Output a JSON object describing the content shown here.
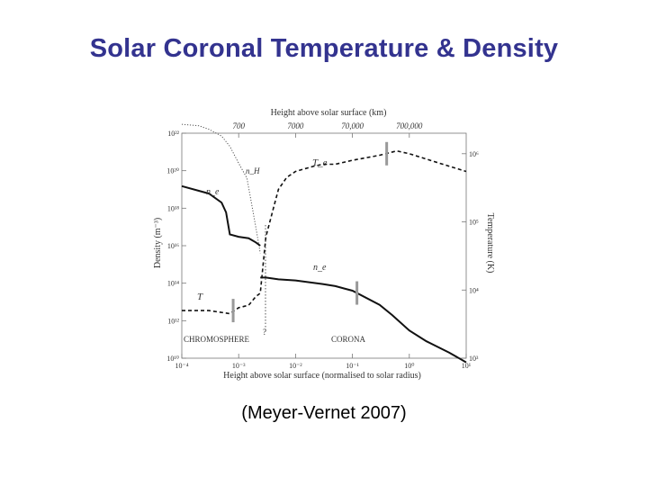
{
  "slide": {
    "title": "Solar Coronal Temperature & Density",
    "caption": "(Meyer-Vernet 2007)"
  },
  "chart_data": {
    "type": "line",
    "top_axis": {
      "label": "Height above solar surface (km)",
      "ticks": [
        "700",
        "7000",
        "70,000",
        "700,000"
      ],
      "tick_values": [
        0.001,
        0.01,
        0.1,
        1
      ]
    },
    "x_axis": {
      "label": "Height above solar surface (normalised to solar radius)",
      "scale": "log",
      "ticks": [
        "10⁻⁴",
        "10⁻³",
        "10⁻²",
        "10⁻¹",
        "10⁰",
        "10¹"
      ],
      "tick_values": [
        0.0001,
        0.001,
        0.01,
        0.1,
        1,
        10
      ],
      "range": [
        0.0001,
        10
      ]
    },
    "y_left": {
      "label": "Density (m⁻³)",
      "scale": "log",
      "ticks": [
        "10²²",
        "10²⁰",
        "10¹⁸",
        "10¹⁶",
        "10¹⁴",
        "10¹²",
        "10¹⁰"
      ],
      "tick_values": [
        1e+22,
        1e+20,
        1e+18,
        1e+16,
        100000000000000.0,
        1000000000000.0,
        10000000000.0
      ],
      "range": [
        10000000000.0,
        1e+22
      ]
    },
    "y_right": {
      "label": "Temperature (K)",
      "scale": "log",
      "ticks": [
        "10⁶",
        "10⁵",
        "10⁴",
        "10³"
      ],
      "tick_values": [
        1000000,
        100000,
        10000,
        1000
      ],
      "range": [
        1000,
        2000000
      ]
    },
    "regions": {
      "chromosphere": "CHROMOSPHERE",
      "corona": "CORONA",
      "unknown_mark": "?"
    },
    "series": [
      {
        "name": "n_H",
        "axis": "left",
        "style": "dotted",
        "x": [
          0.0001,
          0.0002,
          0.0003,
          0.0005,
          0.0007,
          0.001,
          0.0014,
          0.002,
          0.0024
        ],
        "y": [
          3e+22,
          2.5e+22,
          1.6e+22,
          7e+21,
          2e+21,
          2.5e+20,
          4e+19,
          1e+17,
          4000000000000000.0
        ]
      },
      {
        "name": "n_e",
        "axis": "left",
        "style": "solid",
        "x": [
          0.0001,
          0.0003,
          0.0005,
          0.0006,
          0.0007,
          0.001,
          0.0015,
          0.002,
          0.0024
        ],
        "y": [
          1.5e+19,
          6e+18,
          2e+18,
          6e+17,
          4e+16,
          3e+16,
          2.5e+16,
          1.5e+16,
          1e+16
        ]
      },
      {
        "name": "n_e",
        "axis": "left",
        "style": "solid",
        "x": [
          0.0024,
          0.003,
          0.005,
          0.01,
          0.03,
          0.05,
          0.1,
          0.3,
          0.5,
          1,
          2,
          5,
          10
        ],
        "y": [
          200000000000000.0,
          200000000000000.0,
          160000000000000.0,
          140000000000000.0,
          90000000000000.0,
          70000000000000.0,
          40000000000000.0,
          7000000000000.0,
          2000000000000.0,
          300000000000.0,
          80000000000.0,
          20000000000.0,
          6000000000.0
        ]
      },
      {
        "name": "T",
        "axis": "right",
        "style": "dashed",
        "x": [
          0.0001,
          0.0003,
          0.0007,
          0.001,
          0.0015,
          0.002,
          0.0024,
          0.003,
          0.004,
          0.005,
          0.007,
          0.01,
          0.02,
          0.03,
          0.05,
          0.1,
          0.3,
          0.6,
          1,
          3,
          10
        ],
        "y": [
          5000,
          5000,
          4500,
          5500,
          6000,
          8000,
          9000,
          60000,
          150000,
          300000,
          450000,
          550000,
          650000,
          700000,
          700000,
          800000,
          950000,
          1100000,
          1000000,
          750000,
          550000
        ]
      }
    ],
    "curve_labels": {
      "nH": "n_H",
      "ne_upper": "n_e",
      "ne_lower": "n_e",
      "T": "T",
      "Te": "T_e"
    }
  }
}
